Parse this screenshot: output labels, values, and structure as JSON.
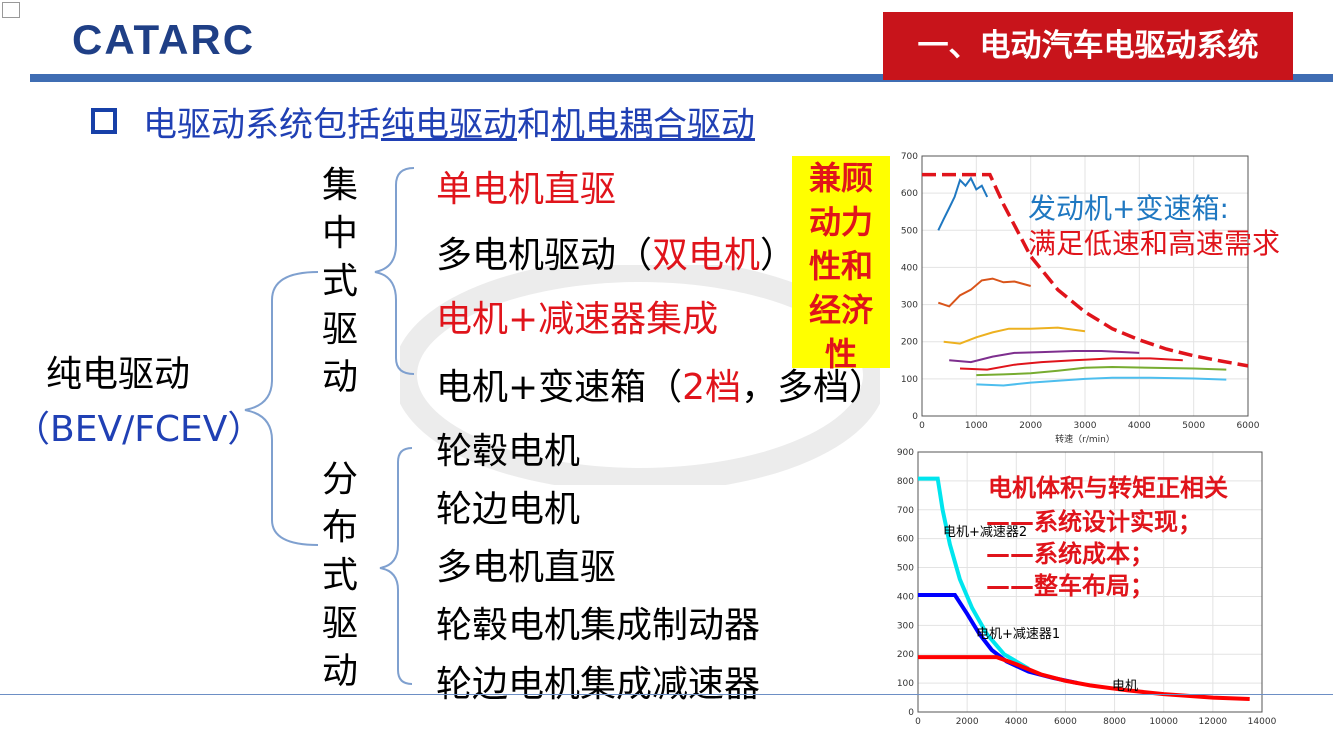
{
  "header": {
    "logo": "CATARC",
    "title": "一、电动汽车电驱动系统"
  },
  "bullet": {
    "prefix": "电驱动系统包括",
    "link1": "纯电驱动",
    "joiner": "和",
    "link2": "机电耦合驱动"
  },
  "tree": {
    "root_line1": "纯电驱动",
    "root_line2": "（BEV/FCEV）",
    "central_label": [
      "集",
      "中",
      "式",
      "驱",
      "动"
    ],
    "distributed_label": [
      "分",
      "布",
      "式",
      "驱",
      "动"
    ],
    "central_items": [
      {
        "text": "单电机直驱"
      },
      {
        "pre": "多电机驱动（",
        "red": "双电机",
        "post": "）"
      },
      {
        "text": "电机+减速器集成"
      },
      {
        "pre": "电机+变速箱（",
        "red": "2档",
        "post": "，多档）"
      }
    ],
    "distributed_items": [
      "轮毂电机",
      "轮边电机",
      "多电机直驱",
      "轮毂电机集成制动器",
      "轮边电机集成减速器"
    ]
  },
  "highlight": [
    "兼顾",
    "动力",
    "性和",
    "经济",
    "性"
  ],
  "chart_notes": {
    "engine_line1": "发动机+变速箱:",
    "engine_line2": "满足低速和高速需求",
    "motor_title": "电机体积与转矩正相关",
    "motor_items": [
      "——系统设计实现；",
      "——系统成本；",
      "——整车布局；"
    ]
  },
  "chart_data": [
    {
      "type": "line",
      "xlabel": "转速（r/min）",
      "ylabel": "",
      "xlim": [
        0,
        6000
      ],
      "ylim": [
        0,
        700
      ],
      "x_ticks": [
        "0",
        "1000",
        "2000",
        "3000",
        "4000",
        "5000",
        "6000"
      ],
      "y_ticks": [
        "0",
        "100",
        "200",
        "300",
        "400",
        "500",
        "600",
        "700"
      ],
      "grid": true,
      "series": [
        {
          "color": "#e0141b",
          "dashed": true,
          "points": [
            [
              0,
              650
            ],
            [
              1250,
              650
            ],
            [
              1500,
              570
            ],
            [
              2000,
              430
            ],
            [
              2500,
              340
            ],
            [
              3000,
              280
            ],
            [
              3500,
              235
            ],
            [
              4000,
              205
            ],
            [
              4500,
              180
            ],
            [
              5000,
              162
            ],
            [
              5500,
              148
            ],
            [
              6000,
              135
            ]
          ]
        },
        {
          "color": "#1f78c1",
          "points": [
            [
              300,
              500
            ],
            [
              400,
              530
            ],
            [
              500,
              560
            ],
            [
              600,
              590
            ],
            [
              700,
              635
            ],
            [
              800,
              620
            ],
            [
              900,
              640
            ],
            [
              1000,
              610
            ],
            [
              1100,
              620
            ],
            [
              1200,
              590
            ]
          ]
        },
        {
          "color": "#d9541a",
          "points": [
            [
              300,
              305
            ],
            [
              500,
              295
            ],
            [
              700,
              325
            ],
            [
              900,
              340
            ],
            [
              1100,
              365
            ],
            [
              1300,
              370
            ],
            [
              1500,
              360
            ],
            [
              1700,
              362
            ],
            [
              2000,
              350
            ]
          ]
        },
        {
          "color": "#edb120",
          "points": [
            [
              400,
              200
            ],
            [
              700,
              195
            ],
            [
              1000,
              212
            ],
            [
              1300,
              225
            ],
            [
              1600,
              235
            ],
            [
              2000,
              235
            ],
            [
              2500,
              238
            ],
            [
              3000,
              228
            ]
          ]
        },
        {
          "color": "#7e2f8e",
          "points": [
            [
              500,
              150
            ],
            [
              900,
              145
            ],
            [
              1300,
              160
            ],
            [
              1700,
              170
            ],
            [
              2200,
              172
            ],
            [
              2800,
              175
            ],
            [
              3300,
              175
            ],
            [
              4000,
              170
            ]
          ]
        },
        {
          "color": "#e0141b",
          "points": [
            [
              700,
              128
            ],
            [
              1200,
              125
            ],
            [
              1700,
              138
            ],
            [
              2200,
              145
            ],
            [
              2800,
              150
            ],
            [
              3500,
              155
            ],
            [
              4200,
              155
            ],
            [
              4800,
              150
            ]
          ]
        },
        {
          "color": "#77ac30",
          "points": [
            [
              1000,
              110
            ],
            [
              1500,
              112
            ],
            [
              2000,
              115
            ],
            [
              2500,
              122
            ],
            [
              3000,
              130
            ],
            [
              3500,
              132
            ],
            [
              4200,
              130
            ],
            [
              5000,
              128
            ],
            [
              5600,
              125
            ]
          ]
        },
        {
          "color": "#4dbeee",
          "points": [
            [
              1000,
              85
            ],
            [
              1500,
              82
            ],
            [
              2000,
              90
            ],
            [
              2500,
              95
            ],
            [
              3000,
              100
            ],
            [
              3500,
              103
            ],
            [
              4200,
              103
            ],
            [
              5000,
              101
            ],
            [
              5600,
              98
            ]
          ]
        }
      ]
    },
    {
      "type": "line",
      "xlim": [
        0,
        14000
      ],
      "ylim": [
        0,
        900
      ],
      "x_ticks": [
        "0",
        "2000",
        "4000",
        "6000",
        "8000",
        "10000",
        "12000",
        "14000"
      ],
      "y_ticks": [
        "0",
        "100",
        "200",
        "300",
        "400",
        "500",
        "600",
        "700",
        "800",
        "900"
      ],
      "grid": true,
      "labels": [
        "电机+减速器2",
        "电机+减速器1",
        "电机"
      ],
      "series": [
        {
          "name": "电机+减速器2",
          "color": "#00e5ee",
          "points": [
            [
              0,
              808
            ],
            [
              800,
              808
            ],
            [
              1000,
              700
            ],
            [
              1300,
              580
            ],
            [
              1700,
              460
            ],
            [
              2200,
              360
            ],
            [
              2800,
              270
            ],
            [
              3500,
              200
            ],
            [
              4500,
              150
            ]
          ]
        },
        {
          "name": "电机+减速器1",
          "color": "#0000ff",
          "points": [
            [
              0,
              405
            ],
            [
              1500,
              405
            ],
            [
              2000,
              340
            ],
            [
              2500,
              270
            ],
            [
              3000,
              215
            ],
            [
              3600,
              175
            ],
            [
              4500,
              140
            ],
            [
              5500,
              118
            ],
            [
              6500,
              100
            ]
          ]
        },
        {
          "name": "电机",
          "color": "#ff0000",
          "points": [
            [
              0,
              190
            ],
            [
              3200,
              190
            ],
            [
              4000,
              165
            ],
            [
              5000,
              130
            ],
            [
              6000,
              108
            ],
            [
              7000,
              92
            ],
            [
              8500,
              75
            ],
            [
              10000,
              62
            ],
            [
              12000,
              50
            ],
            [
              13500,
              45
            ]
          ]
        }
      ]
    }
  ]
}
